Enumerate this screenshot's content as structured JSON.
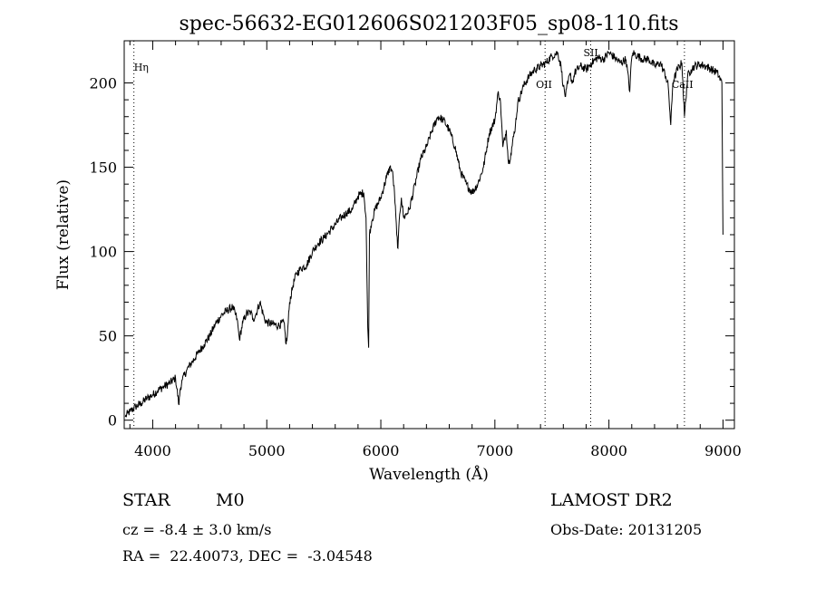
{
  "chart_data": {
    "type": "line",
    "title": "spec-56632-EG012606S021203F05_sp08-110.fits",
    "xlabel": "Wavelength (Å)",
    "ylabel": "Flux (relative)",
    "xlim": [
      3750,
      9100
    ],
    "ylim": [
      -5,
      225
    ],
    "xticks": [
      "4000",
      "5000",
      "6000",
      "7000",
      "8000",
      "9000"
    ],
    "yticks": [
      "0",
      "50",
      "100",
      "150",
      "200"
    ],
    "grid": false,
    "series": [
      {
        "x": [
          3760,
          3780,
          3800,
          3850,
          3900,
          3950,
          4000,
          4050,
          4100,
          4150,
          4200,
          4230,
          4240,
          4260,
          4300,
          4350,
          4400,
          4450,
          4500,
          4550,
          4600,
          4650,
          4700,
          4740,
          4760,
          4790,
          4820,
          4860,
          4880,
          4900,
          4940,
          4980,
          5000,
          5050,
          5100,
          5150,
          5170,
          5180,
          5200,
          5230,
          5260,
          5300,
          5350,
          5400,
          5450,
          5500,
          5550,
          5600,
          5650,
          5700,
          5750,
          5800,
          5850,
          5870,
          5885,
          5893,
          5900,
          5920,
          5950,
          6000,
          6050,
          6080,
          6100,
          6120,
          6140,
          6150,
          6165,
          6180,
          6200,
          6250,
          6300,
          6350,
          6400,
          6450,
          6500,
          6550,
          6600,
          6650,
          6700,
          6750,
          6800,
          6850,
          6900,
          6950,
          7000,
          7030,
          7050,
          7070,
          7100,
          7120,
          7140,
          7180,
          7200,
          7250,
          7300,
          7350,
          7400,
          7450,
          7500,
          7550,
          7580,
          7600,
          7620,
          7640,
          7660,
          7680,
          7700,
          7750,
          7800,
          7850,
          7900,
          7950,
          8000,
          8050,
          8100,
          8150,
          8183,
          8195,
          8210,
          8250,
          8300,
          8350,
          8400,
          8450,
          8498,
          8520,
          8542,
          8560,
          8600,
          8640,
          8662,
          8690,
          8720,
          8750,
          8800,
          8850,
          8900,
          8950,
          8990,
          9000
        ],
        "values": [
          2,
          4,
          5,
          8,
          10,
          13,
          15,
          18,
          20,
          22,
          25,
          9,
          18,
          24,
          30,
          35,
          40,
          45,
          50,
          57,
          62,
          65,
          67,
          60,
          48,
          58,
          63,
          64,
          60,
          62,
          70,
          60,
          58,
          57,
          56,
          58,
          45,
          50,
          70,
          80,
          87,
          90,
          92,
          100,
          105,
          108,
          112,
          116,
          120,
          123,
          125,
          133,
          135,
          120,
          55,
          43,
          110,
          118,
          125,
          132,
          144,
          150,
          148,
          135,
          110,
          102,
          122,
          132,
          120,
          125,
          140,
          155,
          162,
          172,
          180,
          178,
          172,
          162,
          147,
          140,
          135,
          140,
          150,
          170,
          178,
          195,
          188,
          162,
          172,
          152,
          158,
          175,
          188,
          198,
          204,
          208,
          210,
          212,
          216,
          218,
          210,
          198,
          192,
          200,
          205,
          200,
          206,
          210,
          208,
          212,
          215,
          214,
          218,
          215,
          212,
          214,
          195,
          212,
          218,
          216,
          214,
          214,
          210,
          212,
          204,
          198,
          175,
          200,
          208,
          212,
          180,
          204,
          208,
          210,
          211,
          210,
          208,
          206,
          200,
          110
        ]
      }
    ],
    "lines": [
      {
        "label": "Hη",
        "x": 3835
      },
      {
        "label": "OII",
        "x": 7440
      },
      {
        "label": "SII",
        "x": 7840
      },
      {
        "label": "CaII",
        "x": 8662
      }
    ]
  },
  "info": {
    "object_class": "STAR",
    "subclass": "M0",
    "survey": "LAMOST DR2",
    "cz": "cz = -8.4 ± 3.0 km/s",
    "obs_date": "Obs-Date: 20131205",
    "coords": "RA =  22.40073, DEC =  -3.04548"
  }
}
